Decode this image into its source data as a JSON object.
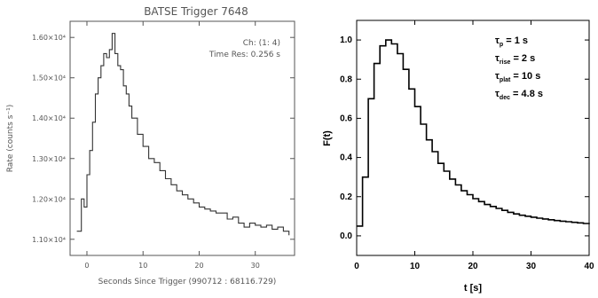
{
  "chart_data": [
    {
      "type": "line",
      "title": "BATSE Trigger 7648",
      "xlabel": "Seconds Since Trigger (990712 : 68116.729)",
      "ylabel": "Rate (counts s⁻¹)",
      "xlim": [
        -3,
        37
      ],
      "ylim": [
        10600,
        16400
      ],
      "xticks": [
        0,
        10,
        20,
        30
      ],
      "xtick_labels": [
        "0",
        "10",
        "20",
        "30"
      ],
      "yticks": [
        11000,
        12000,
        13000,
        14000,
        15000,
        16000
      ],
      "ytick_labels": [
        "1.10×10⁴",
        "1.20×10⁴",
        "1.30×10⁴",
        "1.40×10⁴",
        "1.50×10⁴",
        "1.60×10⁴"
      ],
      "annotations": [
        "Ch: (1: 4)",
        "Time Res: 0.256 s"
      ],
      "grid": false,
      "series": [
        {
          "x": [
            -1.8,
            -1.0,
            -0.5,
            0.0,
            0.5,
            1.0,
            1.5,
            2.0,
            2.5,
            3.0,
            3.5,
            4.0,
            4.5,
            5.0,
            5.5,
            6.0,
            6.5,
            7.0,
            7.5,
            8.0,
            9.0,
            10.0,
            11.0,
            12.0,
            13.0,
            14.0,
            15.0,
            16.0,
            17.0,
            18.0,
            19.0,
            20.0,
            21.0,
            22.0,
            23.0,
            24.0,
            25.0,
            26.0,
            27.0,
            28.0,
            29.0,
            30.0,
            31.0,
            32.0,
            33.0,
            34.0,
            35.0,
            36.0
          ],
          "y": [
            11200,
            12000,
            11800,
            12600,
            13200,
            13900,
            14600,
            15000,
            15300,
            15600,
            15500,
            15700,
            16100,
            15600,
            15300,
            15200,
            14800,
            14600,
            14300,
            14000,
            13600,
            13300,
            13000,
            12900,
            12700,
            12500,
            12350,
            12200,
            12100,
            12000,
            11900,
            11800,
            11750,
            11700,
            11650,
            11650,
            11500,
            11550,
            11400,
            11300,
            11400,
            11350,
            11300,
            11350,
            11250,
            11300,
            11200,
            11100
          ]
        }
      ]
    },
    {
      "type": "line",
      "title": "",
      "xlabel": "t [s]",
      "ylabel": "F(t)",
      "xlim": [
        0,
        40
      ],
      "ylim": [
        -0.1,
        1.1
      ],
      "xticks": [
        0,
        10,
        20,
        30,
        40
      ],
      "xtick_labels": [
        "0",
        "10",
        "20",
        "30",
        "40"
      ],
      "yticks": [
        0.0,
        0.2,
        0.4,
        0.6,
        0.8,
        1.0
      ],
      "ytick_labels": [
        "0.0",
        "0.2",
        "0.4",
        "0.6",
        "0.8",
        "1.0"
      ],
      "legend_position": "top-right",
      "legend_text": [
        {
          "sym": "τ",
          "sub": "p",
          "rest": " = 1 s"
        },
        {
          "sym": "τ",
          "sub": "rise",
          "rest": " = 2 s"
        },
        {
          "sym": "τ",
          "sub": "plat",
          "rest": " = 10 s"
        },
        {
          "sym": "τ",
          "sub": "dec",
          "rest": " = 4.8 s"
        }
      ],
      "grid": false,
      "series": [
        {
          "x": [
            0,
            1,
            2,
            3,
            4,
            5,
            6,
            7,
            8,
            9,
            10,
            11,
            12,
            13,
            14,
            15,
            16,
            17,
            18,
            19,
            20,
            21,
            22,
            23,
            24,
            25,
            26,
            27,
            28,
            29,
            30,
            31,
            32,
            33,
            34,
            35,
            36,
            37,
            38,
            39,
            40
          ],
          "y": [
            0.05,
            0.3,
            0.7,
            0.88,
            0.97,
            1.0,
            0.98,
            0.93,
            0.85,
            0.75,
            0.66,
            0.57,
            0.49,
            0.43,
            0.37,
            0.33,
            0.29,
            0.26,
            0.23,
            0.21,
            0.19,
            0.175,
            0.16,
            0.15,
            0.14,
            0.13,
            0.12,
            0.112,
            0.105,
            0.1,
            0.095,
            0.09,
            0.086,
            0.082,
            0.078,
            0.075,
            0.072,
            0.069,
            0.066,
            0.063,
            0.06
          ]
        }
      ]
    }
  ]
}
